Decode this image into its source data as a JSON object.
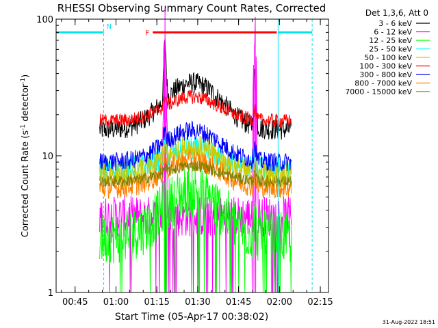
{
  "chart_data": {
    "type": "line",
    "title": "RHESSI Observing Summary Count Rates, Corrected",
    "xlabel": "Start Time (05-Apr-17 00:38:02)",
    "ylabel_main": "Corrected Count Rate (s",
    "ylabel_sup1": "-1",
    "ylabel_mid": " detector",
    "ylabel_sup2": "-1",
    "ylabel_end": ")",
    "yscale": "log",
    "ylim": [
      1,
      100
    ],
    "xlim_minutes": [
      38.03,
      138.0
    ],
    "yticks": [
      {
        "value": 1,
        "label": "1"
      },
      {
        "value": 10,
        "label": "10"
      },
      {
        "value": 100,
        "label": "100"
      }
    ],
    "xticks": [
      {
        "value": 45,
        "label": "00:45"
      },
      {
        "value": 60,
        "label": "01:00"
      },
      {
        "value": 75,
        "label": "01:15"
      },
      {
        "value": 90,
        "label": "01:30"
      },
      {
        "value": 105,
        "label": "01:45"
      },
      {
        "value": 120,
        "label": "02:00"
      },
      {
        "value": 135,
        "label": "02:15"
      }
    ],
    "legend_header": "Det 1,3,6, Att 0",
    "series": [
      {
        "name": "3 - 6 keV",
        "color": "#000000",
        "base": 15.5,
        "flare": 2.2,
        "spike": 2.5,
        "noise": 0.18
      },
      {
        "name": "6 - 12 keV",
        "color": "#ff00ff",
        "base": 3.6,
        "flare": 1.0,
        "spike": 25,
        "noise": 0.35
      },
      {
        "name": "12 - 25 keV",
        "color": "#00ff00",
        "base": 2.5,
        "flare": 2.2,
        "spike": 1.3,
        "noise": 0.45
      },
      {
        "name": "25 - 50 keV",
        "color": "#00ffff",
        "base": 8.0,
        "flare": 1.4,
        "spike": 1.2,
        "noise": 0.2
      },
      {
        "name": "50 - 100 keV",
        "color": "#cccc00",
        "base": 7.2,
        "flare": 1.6,
        "spike": 1.2,
        "noise": 0.22
      },
      {
        "name": "100 - 300 keV",
        "color": "#ff0000",
        "base": 18.0,
        "flare": 1.5,
        "spike": 1.2,
        "noise": 0.12
      },
      {
        "name": "300 - 800 keV",
        "color": "#0000ff",
        "base": 9.0,
        "flare": 1.7,
        "spike": 1.3,
        "noise": 0.16
      },
      {
        "name": "800 - 7000 keV",
        "color": "#ff8000",
        "base": 5.8,
        "flare": 1.6,
        "spike": 1.2,
        "noise": 0.18
      },
      {
        "name": "7000 - 15000 keV",
        "color": "#808000",
        "base": 6.5,
        "flare": 1.3,
        "spike": 1.1,
        "noise": 0.1
      }
    ],
    "data_window_minutes": [
      54.0,
      124.5
    ],
    "flare_peak_minute": 88.0,
    "spikes_minutes": [
      78.0,
      111.0
    ],
    "night_intervals_minutes": [
      [
        38.03,
        55.5
      ],
      [
        119.5,
        132.0
      ]
    ],
    "night_label": "N",
    "flare_bar_minutes": [
      73.5,
      119.0
    ],
    "flare_bar_value": 80,
    "flare_label": "F",
    "timestamp": "31-Aug-2022 18:51"
  },
  "colors": {
    "night": "#00e5ee",
    "flare": "#ff0000"
  }
}
